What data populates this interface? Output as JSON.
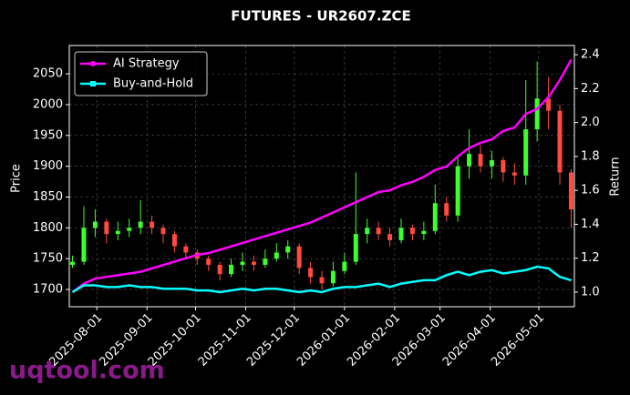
{
  "chart_data": {
    "type": "candlestick",
    "title": "FUTURES - UR2607.ZCE",
    "y_label": "Price",
    "y2_label": "Return",
    "watermark": "uqtool.com",
    "x": [
      "2025-07-17",
      "2025-07-24",
      "2025-07-31",
      "2025-08-07",
      "2025-08-14",
      "2025-08-21",
      "2025-08-28",
      "2025-09-04",
      "2025-09-11",
      "2025-09-18",
      "2025-09-25",
      "2025-10-02",
      "2025-10-09",
      "2025-10-16",
      "2025-10-23",
      "2025-10-30",
      "2025-11-06",
      "2025-11-13",
      "2025-11-20",
      "2025-11-27",
      "2025-12-04",
      "2025-12-11",
      "2025-12-18",
      "2025-12-25",
      "2026-01-01",
      "2026-01-08",
      "2026-01-15",
      "2026-01-22",
      "2026-01-29",
      "2026-02-05",
      "2026-02-12",
      "2026-02-19",
      "2026-02-26",
      "2026-03-05",
      "2026-03-12",
      "2026-03-19",
      "2026-03-26",
      "2026-04-02",
      "2026-04-09",
      "2026-04-16",
      "2026-04-23",
      "2026-04-30",
      "2026-05-07",
      "2026-05-14",
      "2026-05-21"
    ],
    "ohlc": {
      "open": [
        1740,
        1745,
        1800,
        1810,
        1790,
        1795,
        1800,
        1810,
        1800,
        1790,
        1770,
        1760,
        1750,
        1740,
        1725,
        1740,
        1745,
        1740,
        1750,
        1760,
        1770,
        1735,
        1720,
        1710,
        1730,
        1745,
        1790,
        1800,
        1790,
        1780,
        1800,
        1790,
        1795,
        1840,
        1820,
        1900,
        1920,
        1900,
        1910,
        1890,
        1885,
        1960,
        2010,
        1990,
        1890
      ],
      "high": [
        1755,
        1835,
        1830,
        1815,
        1810,
        1815,
        1845,
        1820,
        1805,
        1795,
        1775,
        1765,
        1755,
        1745,
        1750,
        1760,
        1755,
        1765,
        1775,
        1780,
        1775,
        1745,
        1730,
        1745,
        1760,
        1890,
        1815,
        1810,
        1800,
        1815,
        1805,
        1810,
        1870,
        1850,
        1915,
        1960,
        1935,
        1925,
        1915,
        1905,
        2040,
        2070,
        2045,
        2000,
        1895
      ],
      "low": [
        1735,
        1740,
        1785,
        1775,
        1780,
        1785,
        1790,
        1790,
        1775,
        1760,
        1750,
        1740,
        1730,
        1715,
        1720,
        1730,
        1730,
        1735,
        1745,
        1750,
        1725,
        1710,
        1700,
        1705,
        1725,
        1740,
        1775,
        1780,
        1770,
        1775,
        1780,
        1780,
        1790,
        1810,
        1810,
        1880,
        1890,
        1880,
        1875,
        1870,
        1870,
        1940,
        1960,
        1870,
        1800
      ],
      "close": [
        1745,
        1800,
        1810,
        1790,
        1795,
        1800,
        1810,
        1800,
        1790,
        1770,
        1760,
        1750,
        1740,
        1725,
        1740,
        1745,
        1740,
        1750,
        1760,
        1770,
        1735,
        1720,
        1710,
        1730,
        1745,
        1790,
        1800,
        1790,
        1780,
        1800,
        1790,
        1795,
        1840,
        1820,
        1900,
        1920,
        1900,
        1910,
        1890,
        1885,
        1960,
        2010,
        1990,
        1890,
        1830
      ],
      "up_color": "#3dff2e",
      "down_color": "#ff4a3d"
    },
    "series": [
      {
        "name": "AI Strategy",
        "color": "#ff00ff",
        "axis": "y2",
        "values": [
          1.0,
          1.05,
          1.08,
          1.09,
          1.1,
          1.11,
          1.12,
          1.14,
          1.16,
          1.18,
          1.2,
          1.22,
          1.23,
          1.25,
          1.27,
          1.29,
          1.31,
          1.33,
          1.35,
          1.37,
          1.39,
          1.41,
          1.44,
          1.47,
          1.5,
          1.53,
          1.56,
          1.59,
          1.6,
          1.63,
          1.65,
          1.68,
          1.72,
          1.74,
          1.8,
          1.85,
          1.88,
          1.9,
          1.95,
          1.97,
          2.05,
          2.08,
          2.15,
          2.25,
          2.37
        ]
      },
      {
        "name": "Buy-and-Hold",
        "color": "#00ffff",
        "axis": "y2",
        "values": [
          1.0,
          1.04,
          1.04,
          1.03,
          1.03,
          1.04,
          1.03,
          1.03,
          1.02,
          1.02,
          1.02,
          1.01,
          1.01,
          1.0,
          1.01,
          1.02,
          1.01,
          1.02,
          1.02,
          1.01,
          1.0,
          1.01,
          1.0,
          1.02,
          1.03,
          1.03,
          1.04,
          1.05,
          1.03,
          1.05,
          1.06,
          1.07,
          1.07,
          1.1,
          1.12,
          1.1,
          1.12,
          1.13,
          1.11,
          1.12,
          1.13,
          1.15,
          1.14,
          1.09,
          1.07
        ]
      }
    ],
    "xlim": [
      "2025-07-15",
      "2026-05-23"
    ],
    "xticks": [
      "2025-08-01",
      "2025-09-01",
      "2025-10-01",
      "2025-11-01",
      "2025-12-01",
      "2026-01-01",
      "2026-02-01",
      "2026-03-01",
      "2026-04-01",
      "2026-05-01"
    ],
    "ylim": [
      1672,
      2096
    ],
    "yticks": [
      1700,
      1750,
      1800,
      1850,
      1900,
      1950,
      2000,
      2050
    ],
    "y2lim": [
      0.914,
      2.454
    ],
    "y2ticks": [
      {
        "value": 1,
        "label": "1.0"
      },
      1.2,
      1.4,
      1.6,
      1.8,
      {
        "value": 2,
        "label": "2.0"
      },
      2.2,
      2.4
    ],
    "grid": true,
    "legend": "upper left"
  }
}
